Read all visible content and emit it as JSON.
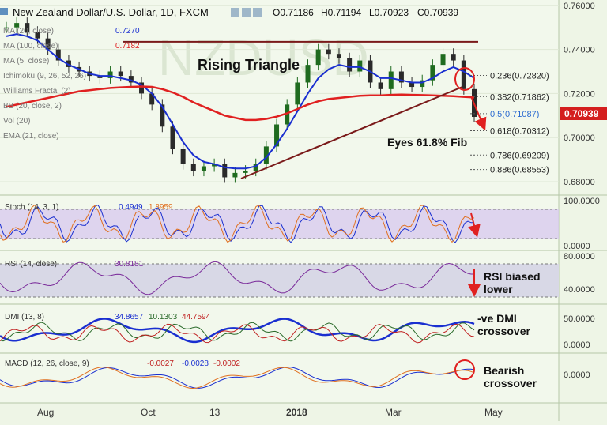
{
  "header": {
    "symbol_title": "New Zealand Dollar/U.S. Dollar, 1D, FXCM",
    "o": "O0.71186",
    "h": "H0.71194",
    "l": "L0.70923",
    "c": "C0.70939"
  },
  "indicator_legends": [
    {
      "label": "MA (20, close)",
      "value": "0.7270",
      "color": "#1a2fd0"
    },
    {
      "label": "MA (100, close)",
      "value": "0.7182",
      "color": "#e02020"
    },
    {
      "label": "MA (5, close)",
      "value": "",
      "color": "#8a2a2a"
    },
    {
      "label": "Ichimoku (9, 26, 52, 26)",
      "value": "",
      "color": "#666666"
    },
    {
      "label": "Williams Fractal (2)",
      "value": "",
      "color": "#666666"
    },
    {
      "label": "BB (20, close, 2)",
      "value": "",
      "color": "#666666"
    },
    {
      "label": "Vol (20)",
      "value": "",
      "color": "#666666"
    },
    {
      "label": "EMA (21, close)",
      "value": "",
      "color": "#666666"
    }
  ],
  "annotations": {
    "pattern": "Rising Triangle",
    "fib_note": "Eyes 61.8% Fib",
    "rsi_note": [
      "RSI biased",
      "lower"
    ],
    "dmi_note": [
      "-ve DMI",
      "crossover"
    ],
    "macd_note": [
      "Bearish",
      "crossover"
    ],
    "watermark": "NZDUSD"
  },
  "fib_levels": [
    {
      "label": "0.236(0.72820)",
      "value": 0.7282,
      "color": "#222222"
    },
    {
      "label": "0.382(0.71862)",
      "value": 0.71862,
      "color": "#222222"
    },
    {
      "label": "0.5(0.71087)",
      "value": 0.71087,
      "color": "#2a6ad0"
    },
    {
      "label": "0.618(0.70312)",
      "value": 0.70312,
      "color": "#222222"
    },
    {
      "label": "0.786(0.69209)",
      "value": 0.69209,
      "color": "#222222"
    },
    {
      "label": "0.886(0.68553)",
      "value": 0.68553,
      "color": "#222222"
    }
  ],
  "price_badge": "0.70939",
  "price_axis": [
    "0.76000",
    "0.74000",
    "0.72000",
    "0.70000",
    "0.68000"
  ],
  "x_axis": [
    "Aug",
    "Oct",
    "13",
    "2018",
    "Mar",
    "May"
  ],
  "panes": {
    "stoch": {
      "legend": "Stoch (14, 3, 1)",
      "v1": "0.4949",
      "v2": "1.8959",
      "axis": [
        "100.0000",
        "0.0000"
      ]
    },
    "rsi": {
      "legend": "RSI (14, close)",
      "v1": "30.8181",
      "axis": [
        "80.0000",
        "40.0000"
      ]
    },
    "dmi": {
      "legend": "DMI (13, 8)",
      "v1": "34.8657",
      "v2": "10.1303",
      "v3": "44.7594",
      "axis": [
        "50.0000",
        "0.0000"
      ]
    },
    "macd": {
      "legend": "MACD (12, 26, close, 9)",
      "v1": "-0.0027",
      "v2": "-0.0028",
      "v3": "-0.0002",
      "axis": [
        "0.0000"
      ]
    }
  },
  "colors": {
    "up_candle": "#1f6b1f",
    "down_candle": "#2a2a2a",
    "ma20": "#1a2fd0",
    "ma100": "#e02020",
    "trendline": "#7a1a1a",
    "badge": "#d41e1e"
  },
  "chart_data": {
    "type": "line",
    "title": "New Zealand Dollar/U.S. Dollar, 1D, FXCM",
    "xlabel": "",
    "ylabel": "",
    "ylim": [
      0.675,
      0.761
    ],
    "x_ticks": [
      "Aug",
      "Oct",
      "13",
      "2018",
      "Mar",
      "May"
    ],
    "series": [
      {
        "name": "Price (close)",
        "values": [
          0.75,
          0.752,
          0.748,
          0.745,
          0.74,
          0.735,
          0.732,
          0.73,
          0.728,
          0.727,
          0.73,
          0.728,
          0.725,
          0.72,
          0.715,
          0.705,
          0.695,
          0.688,
          0.685,
          0.687,
          0.688,
          0.682,
          0.684,
          0.685,
          0.688,
          0.696,
          0.706,
          0.715,
          0.725,
          0.733,
          0.74,
          0.738,
          0.736,
          0.73,
          0.735,
          0.725,
          0.722,
          0.73,
          0.725,
          0.723,
          0.726,
          0.733,
          0.738,
          0.735,
          0.722,
          0.7094
        ]
      },
      {
        "name": "MA (20, close)",
        "values": [
          0.746,
          0.747,
          0.746,
          0.744,
          0.74,
          0.736,
          0.733,
          0.731,
          0.729,
          0.728,
          0.728,
          0.727,
          0.726,
          0.724,
          0.72,
          0.714,
          0.706,
          0.698,
          0.692,
          0.689,
          0.688,
          0.6865,
          0.686,
          0.686,
          0.687,
          0.691,
          0.697,
          0.704,
          0.712,
          0.72,
          0.727,
          0.731,
          0.733,
          0.732,
          0.732,
          0.73,
          0.727,
          0.727,
          0.726,
          0.725,
          0.725,
          0.727,
          0.73,
          0.732,
          0.73,
          0.727
        ]
      },
      {
        "name": "MA (100, close)",
        "values": [
          0.714,
          0.715,
          0.716,
          0.717,
          0.718,
          0.719,
          0.72,
          0.721,
          0.7215,
          0.722,
          0.7225,
          0.7228,
          0.723,
          0.7232,
          0.723,
          0.722,
          0.7205,
          0.7185,
          0.716,
          0.714,
          0.712,
          0.71,
          0.709,
          0.708,
          0.708,
          0.7085,
          0.7095,
          0.711,
          0.713,
          0.715,
          0.7165,
          0.7175,
          0.718,
          0.7185,
          0.719,
          0.7192,
          0.7192,
          0.7194,
          0.7195,
          0.7194,
          0.7193,
          0.7192,
          0.719,
          0.7188,
          0.7185,
          0.7182
        ]
      }
    ],
    "resistance_line": 0.7435,
    "support_trendline": [
      [
        0.679,
        "Nov"
      ],
      [
        0.718,
        "Apr"
      ]
    ],
    "fibonacci": [
      0.7282,
      0.71862,
      0.71087,
      0.70312,
      0.69209,
      0.68553
    ],
    "last_close": 0.70939
  }
}
